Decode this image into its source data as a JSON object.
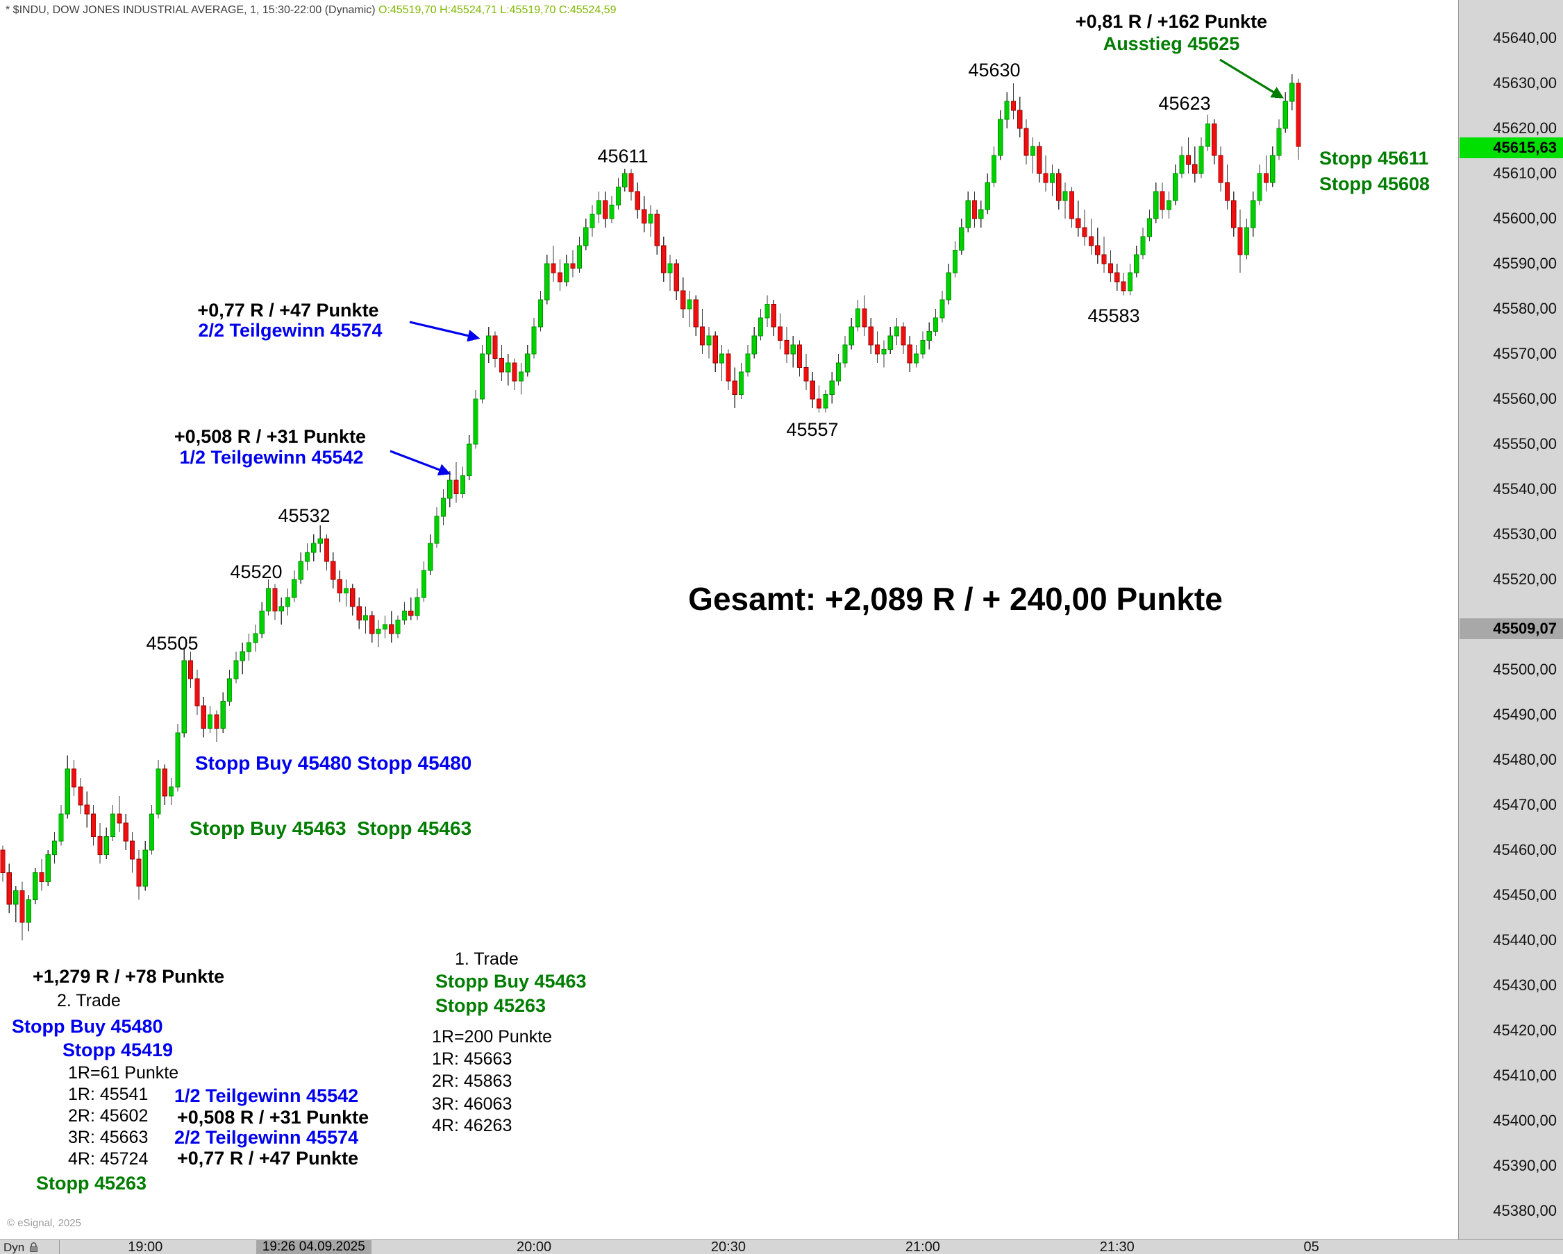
{
  "header": {
    "symbol_line": "* $INDU, DOW JONES INDUSTRIAL AVERAGE, 1, 15:30-22:00 (Dynamic) ",
    "ohlc_line": "O:45519,70 H:45524,71 L:45519,70 C:45524,59"
  },
  "colors": {
    "up": "#00cf00",
    "up_border": "#008f00",
    "down": "#ee1010",
    "down_border": "#990000",
    "wick": "#3a3a3a",
    "axis_bg": "#d6d6d6",
    "price_marker_bg": "#00e000",
    "secondary_marker_bg": "#a8a8a8",
    "blue": "#0000ee",
    "green": "#007d00",
    "ohlc_text": "#7fb800",
    "title_text": "#3f3f3f"
  },
  "price_axis": {
    "current_price": "45615,63",
    "current_price_value": 45615.63,
    "secondary_price": "45509,07",
    "secondary_price_value": 45509.07,
    "ticks": [
      "45640,00",
      "45630,00",
      "45620,00",
      "45610,00",
      "45600,00",
      "45590,00",
      "45580,00",
      "45570,00",
      "45560,00",
      "45550,00",
      "45540,00",
      "45530,00",
      "45520,00",
      "45510,00",
      "45500,00",
      "45490,00",
      "45480,00",
      "45470,00",
      "45460,00",
      "45450,00",
      "45440,00",
      "45430,00",
      "45420,00",
      "45410,00",
      "45400,00",
      "45390,00",
      "45380,00"
    ]
  },
  "time_axis": {
    "labels": [
      {
        "label": "19:00",
        "i": 22
      },
      {
        "label": "20:00",
        "i": 82
      },
      {
        "label": "20:30",
        "i": 112
      },
      {
        "label": "21:00",
        "i": 142
      },
      {
        "label": "21:30",
        "i": 172
      },
      {
        "label": "05",
        "i": 202
      }
    ],
    "marker": {
      "label": "19:26 04.09.2025",
      "i": 48
    }
  },
  "controls": {
    "dyn_label": "Dyn"
  },
  "footer": {
    "copyright": "© eSignal, 2025"
  },
  "annotations": {
    "exit_result": "+0,81 R / +162 Punkte",
    "exit_label": "Ausstieg 45625",
    "peak_45630": "45630",
    "peak_45623": "45623",
    "peak_45611": "45611",
    "stopp_45611": "Stopp 45611",
    "stopp_45608": "Stopp 45608",
    "tp2_result": "+0,77 R / +47 Punkte",
    "tp2_label": "2/2 Teilgewinn 45574",
    "tp1_result": "+0,508 R / +31 Punkte",
    "tp1_label": "1/2 Teilgewinn 45542",
    "peak_45532": "45532",
    "peak_45520": "45520",
    "peak_45505": "45505",
    "low_45557": "45557",
    "low_45583": "45583",
    "gesamt": "Gesamt: +2,089 R / + 240,00 Punkte",
    "stopp_buy_blue": "Stopp Buy 45480 Stopp 45480",
    "stopp_buy_green": "Stopp Buy 45463  Stopp 45463",
    "trade2": {
      "result": "+1,279 R / +78 Punkte",
      "title": "2. Trade",
      "stopp_buy": "Stopp Buy 45480",
      "stopp": "Stopp 45419",
      "r_def": "1R=61 Punkte",
      "r1": "1R: 45541",
      "r2": "2R: 45602",
      "r3": "3R: 45663",
      "r4": "4R: 45724",
      "stopp_initial": "Stopp 45263",
      "tp1_label": "1/2 Teilgewinn 45542",
      "tp1_result": "+0,508 R / +31 Punkte",
      "tp2_label": "2/2 Teilgewinn 45574",
      "tp2_result": "+0,77 R / +47 Punkte"
    },
    "trade1": {
      "title": "1. Trade",
      "stopp_buy": "Stopp Buy 45463",
      "stopp": "Stopp 45263",
      "r_def": "1R=200 Punkte",
      "r1": "1R: 45663",
      "r2": "2R: 45863",
      "r3": "3R: 46063",
      "r4": "4R: 46263"
    }
  },
  "arrows": [
    {
      "name": "teilgewinn1-arrow",
      "color": "#0000ee",
      "marker": "arrow-blue",
      "from": [
        562,
        650
      ],
      "to": [
        646,
        682
      ]
    },
    {
      "name": "teilgewinn2-arrow",
      "color": "#0000ee",
      "marker": "arrow-blue",
      "from": [
        590,
        464
      ],
      "to": [
        688,
        487
      ]
    },
    {
      "name": "ausstieg-arrow",
      "color": "#007d00",
      "marker": "arrow-green",
      "from": [
        1757,
        86
      ],
      "to": [
        1846,
        140
      ]
    }
  ],
  "chart_data": {
    "type": "candlestick",
    "title": "$INDU Dow Jones Industrial Average, 1-minute, 15:30-22:00 (Dynamic)",
    "interval_minutes": 1,
    "price_base": 45400,
    "y_axis": {
      "min": 45380,
      "max": 45640,
      "step": 10
    },
    "legend": "offsets from price_base, order [open, high, low, close]",
    "candles": [
      [
        60,
        61,
        53,
        55
      ],
      [
        55,
        57,
        46,
        48
      ],
      [
        48,
        52,
        44,
        51
      ],
      [
        51,
        53,
        40,
        44
      ],
      [
        44,
        50,
        42,
        49
      ],
      [
        49,
        56,
        48,
        55
      ],
      [
        55,
        58,
        51,
        53
      ],
      [
        53,
        60,
        52,
        59
      ],
      [
        59,
        64,
        57,
        62
      ],
      [
        62,
        70,
        61,
        68
      ],
      [
        68,
        81,
        67,
        78
      ],
      [
        78,
        80,
        72,
        74
      ],
      [
        74,
        76,
        68,
        70
      ],
      [
        70,
        73,
        65,
        68
      ],
      [
        68,
        70,
        61,
        63
      ],
      [
        63,
        66,
        57,
        59
      ],
      [
        59,
        65,
        58,
        63
      ],
      [
        63,
        70,
        62,
        68
      ],
      [
        68,
        72,
        64,
        66
      ],
      [
        66,
        68,
        60,
        62
      ],
      [
        62,
        64,
        55,
        58
      ],
      [
        58,
        60,
        49,
        52
      ],
      [
        52,
        62,
        51,
        60
      ],
      [
        60,
        70,
        59,
        68
      ],
      [
        68,
        80,
        67,
        78
      ],
      [
        78,
        79,
        70,
        72
      ],
      [
        72,
        76,
        70,
        74
      ],
      [
        74,
        88,
        73,
        86
      ],
      [
        86,
        105,
        85,
        102
      ],
      [
        102,
        104,
        96,
        98
      ],
      [
        98,
        100,
        90,
        92
      ],
      [
        92,
        94,
        85,
        87
      ],
      [
        87,
        92,
        86,
        90
      ],
      [
        90,
        91,
        84,
        87
      ],
      [
        87,
        95,
        86,
        93
      ],
      [
        93,
        100,
        92,
        98
      ],
      [
        98,
        104,
        97,
        102
      ],
      [
        102,
        106,
        99,
        104
      ],
      [
        104,
        108,
        102,
        106
      ],
      [
        106,
        110,
        104,
        108
      ],
      [
        108,
        115,
        107,
        113
      ],
      [
        113,
        120,
        112,
        118
      ],
      [
        118,
        119,
        111,
        113
      ],
      [
        113,
        116,
        110,
        114
      ],
      [
        114,
        118,
        112,
        116
      ],
      [
        116,
        122,
        115,
        120
      ],
      [
        120,
        126,
        119,
        124
      ],
      [
        124,
        128,
        122,
        126
      ],
      [
        126,
        130,
        124,
        128
      ],
      [
        128,
        132,
        126,
        129
      ],
      [
        129,
        130,
        122,
        124
      ],
      [
        124,
        126,
        118,
        120
      ],
      [
        120,
        122,
        115,
        117
      ],
      [
        117,
        120,
        114,
        118
      ],
      [
        118,
        119,
        112,
        114
      ],
      [
        114,
        116,
        109,
        111
      ],
      [
        111,
        114,
        108,
        112
      ],
      [
        112,
        113,
        106,
        108
      ],
      [
        108,
        111,
        105,
        109
      ],
      [
        109,
        112,
        107,
        110
      ],
      [
        110,
        113,
        106,
        108
      ],
      [
        108,
        112,
        107,
        111
      ],
      [
        111,
        115,
        110,
        113
      ],
      [
        113,
        116,
        111,
        112
      ],
      [
        112,
        118,
        111,
        116
      ],
      [
        116,
        124,
        115,
        122
      ],
      [
        122,
        130,
        121,
        128
      ],
      [
        128,
        136,
        127,
        134
      ],
      [
        134,
        140,
        132,
        138
      ],
      [
        138,
        144,
        136,
        142
      ],
      [
        142,
        146,
        137,
        139
      ],
      [
        139,
        145,
        138,
        143
      ],
      [
        143,
        152,
        142,
        150
      ],
      [
        150,
        162,
        149,
        160
      ],
      [
        160,
        172,
        159,
        170
      ],
      [
        170,
        176,
        168,
        174
      ],
      [
        174,
        175,
        167,
        169
      ],
      [
        169,
        172,
        164,
        166
      ],
      [
        166,
        170,
        163,
        168
      ],
      [
        168,
        169,
        162,
        164
      ],
      [
        164,
        168,
        161,
        166
      ],
      [
        166,
        172,
        165,
        170
      ],
      [
        170,
        178,
        169,
        176
      ],
      [
        176,
        184,
        175,
        182
      ],
      [
        182,
        192,
        181,
        190
      ],
      [
        190,
        194,
        186,
        188
      ],
      [
        188,
        191,
        184,
        186
      ],
      [
        186,
        192,
        185,
        190
      ],
      [
        190,
        193,
        187,
        189
      ],
      [
        189,
        196,
        188,
        194
      ],
      [
        194,
        200,
        193,
        198
      ],
      [
        198,
        203,
        196,
        201
      ],
      [
        201,
        206,
        199,
        204
      ],
      [
        204,
        206,
        198,
        200
      ],
      [
        200,
        205,
        199,
        203
      ],
      [
        203,
        209,
        202,
        207
      ],
      [
        207,
        211,
        206,
        210
      ],
      [
        210,
        211,
        204,
        206
      ],
      [
        206,
        208,
        200,
        202
      ],
      [
        202,
        205,
        197,
        199
      ],
      [
        199,
        203,
        196,
        201
      ],
      [
        201,
        202,
        192,
        194
      ],
      [
        194,
        196,
        186,
        188
      ],
      [
        188,
        192,
        184,
        190
      ],
      [
        190,
        191,
        182,
        184
      ],
      [
        184,
        187,
        178,
        180
      ],
      [
        180,
        184,
        176,
        182
      ],
      [
        182,
        183,
        174,
        176
      ],
      [
        176,
        180,
        170,
        172
      ],
      [
        172,
        176,
        169,
        174
      ],
      [
        174,
        175,
        166,
        168
      ],
      [
        168,
        172,
        164,
        170
      ],
      [
        170,
        171,
        162,
        164
      ],
      [
        164,
        167,
        158,
        161
      ],
      [
        161,
        168,
        160,
        166
      ],
      [
        166,
        172,
        165,
        170
      ],
      [
        170,
        176,
        169,
        174
      ],
      [
        174,
        180,
        173,
        178
      ],
      [
        178,
        183,
        176,
        181
      ],
      [
        181,
        182,
        174,
        176
      ],
      [
        176,
        179,
        171,
        173
      ],
      [
        173,
        176,
        168,
        170
      ],
      [
        170,
        174,
        167,
        172
      ],
      [
        172,
        173,
        165,
        167
      ],
      [
        167,
        170,
        162,
        164
      ],
      [
        164,
        166,
        158,
        160
      ],
      [
        160,
        163,
        157,
        158
      ],
      [
        158,
        162,
        157,
        161
      ],
      [
        161,
        166,
        159,
        164
      ],
      [
        164,
        170,
        163,
        168
      ],
      [
        168,
        174,
        167,
        172
      ],
      [
        172,
        178,
        171,
        176
      ],
      [
        176,
        182,
        175,
        180
      ],
      [
        180,
        183,
        174,
        176
      ],
      [
        176,
        178,
        170,
        172
      ],
      [
        172,
        175,
        168,
        170
      ],
      [
        170,
        173,
        167,
        171
      ],
      [
        171,
        176,
        170,
        174
      ],
      [
        174,
        178,
        172,
        176
      ],
      [
        176,
        177,
        170,
        172
      ],
      [
        172,
        174,
        166,
        168
      ],
      [
        168,
        172,
        167,
        170
      ],
      [
        170,
        175,
        169,
        173
      ],
      [
        173,
        177,
        171,
        175
      ],
      [
        175,
        180,
        174,
        178
      ],
      [
        178,
        184,
        177,
        182
      ],
      [
        182,
        190,
        181,
        188
      ],
      [
        188,
        195,
        187,
        193
      ],
      [
        193,
        200,
        192,
        198
      ],
      [
        198,
        206,
        197,
        204
      ],
      [
        204,
        206,
        198,
        200
      ],
      [
        200,
        204,
        198,
        202
      ],
      [
        202,
        210,
        201,
        208
      ],
      [
        208,
        216,
        207,
        214
      ],
      [
        214,
        224,
        213,
        222
      ],
      [
        222,
        228,
        220,
        226
      ],
      [
        226,
        230,
        222,
        224
      ],
      [
        224,
        227,
        218,
        220
      ],
      [
        220,
        222,
        212,
        214
      ],
      [
        214,
        218,
        210,
        216
      ],
      [
        216,
        217,
        208,
        210
      ],
      [
        210,
        214,
        206,
        208
      ],
      [
        208,
        212,
        205,
        210
      ],
      [
        210,
        211,
        202,
        204
      ],
      [
        204,
        208,
        200,
        206
      ],
      [
        206,
        207,
        198,
        200
      ],
      [
        200,
        204,
        196,
        198
      ],
      [
        198,
        202,
        194,
        196
      ],
      [
        196,
        200,
        192,
        194
      ],
      [
        194,
        198,
        190,
        192
      ],
      [
        192,
        196,
        188,
        190
      ],
      [
        190,
        193,
        186,
        188
      ],
      [
        188,
        190,
        184,
        186
      ],
      [
        186,
        188,
        183,
        184
      ],
      [
        184,
        190,
        183,
        188
      ],
      [
        188,
        194,
        187,
        192
      ],
      [
        192,
        198,
        191,
        196
      ],
      [
        196,
        202,
        195,
        200
      ],
      [
        200,
        208,
        199,
        206
      ],
      [
        206,
        208,
        200,
        202
      ],
      [
        202,
        206,
        200,
        204
      ],
      [
        204,
        212,
        203,
        210
      ],
      [
        210,
        216,
        209,
        214
      ],
      [
        214,
        218,
        210,
        212
      ],
      [
        212,
        216,
        208,
        210
      ],
      [
        210,
        218,
        209,
        216
      ],
      [
        216,
        223,
        215,
        221
      ],
      [
        221,
        222,
        212,
        214
      ],
      [
        214,
        216,
        206,
        208
      ],
      [
        208,
        212,
        202,
        204
      ],
      [
        204,
        206,
        196,
        198
      ],
      [
        198,
        202,
        188,
        192
      ],
      [
        192,
        200,
        191,
        198
      ],
      [
        198,
        206,
        196,
        204
      ],
      [
        204,
        212,
        203,
        210
      ],
      [
        210,
        214,
        206,
        208
      ],
      [
        208,
        216,
        207,
        214
      ],
      [
        214,
        222,
        213,
        220
      ],
      [
        220,
        228,
        219,
        226
      ],
      [
        226,
        232,
        224,
        230
      ],
      [
        230,
        231,
        213,
        216
      ]
    ]
  }
}
